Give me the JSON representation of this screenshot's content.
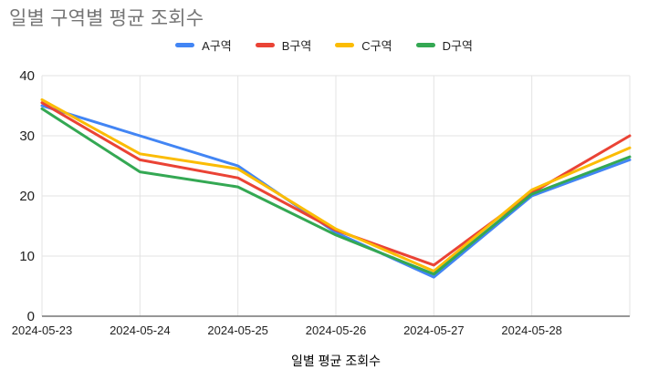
{
  "chart_data": {
    "type": "line",
    "title": "일별 구역별 평균 조회수",
    "x_axis_title": "일별 평균 조회수",
    "categories": [
      "2024-05-23",
      "2024-05-24",
      "2024-05-25",
      "2024-05-26",
      "2024-05-27",
      "2024-05-28",
      ""
    ],
    "series": [
      {
        "name": "A구역",
        "color": "#4285F4",
        "values": [
          35,
          30,
          25,
          13.9,
          6.5,
          20,
          26
        ]
      },
      {
        "name": "B구역",
        "color": "#EA4335",
        "values": [
          35.5,
          26,
          23,
          14.3,
          8.5,
          20.5,
          30
        ]
      },
      {
        "name": "C구역",
        "color": "#FBBC04",
        "values": [
          36,
          27,
          24.5,
          14.5,
          7.5,
          21,
          28
        ]
      },
      {
        "name": "D구역",
        "color": "#34A853",
        "values": [
          34.5,
          24,
          21.5,
          13.5,
          7,
          20.3,
          26.5
        ]
      }
    ],
    "ylim": [
      0,
      40
    ],
    "yticks": [
      0,
      10,
      20,
      30,
      40
    ],
    "grid": true,
    "legend_position": "top"
  },
  "colors": {
    "title_text": "#757575",
    "axis_text": "#1f1f1f",
    "gridline": "#e3e3e3",
    "baseline": "#757575",
    "background": "#ffffff"
  }
}
